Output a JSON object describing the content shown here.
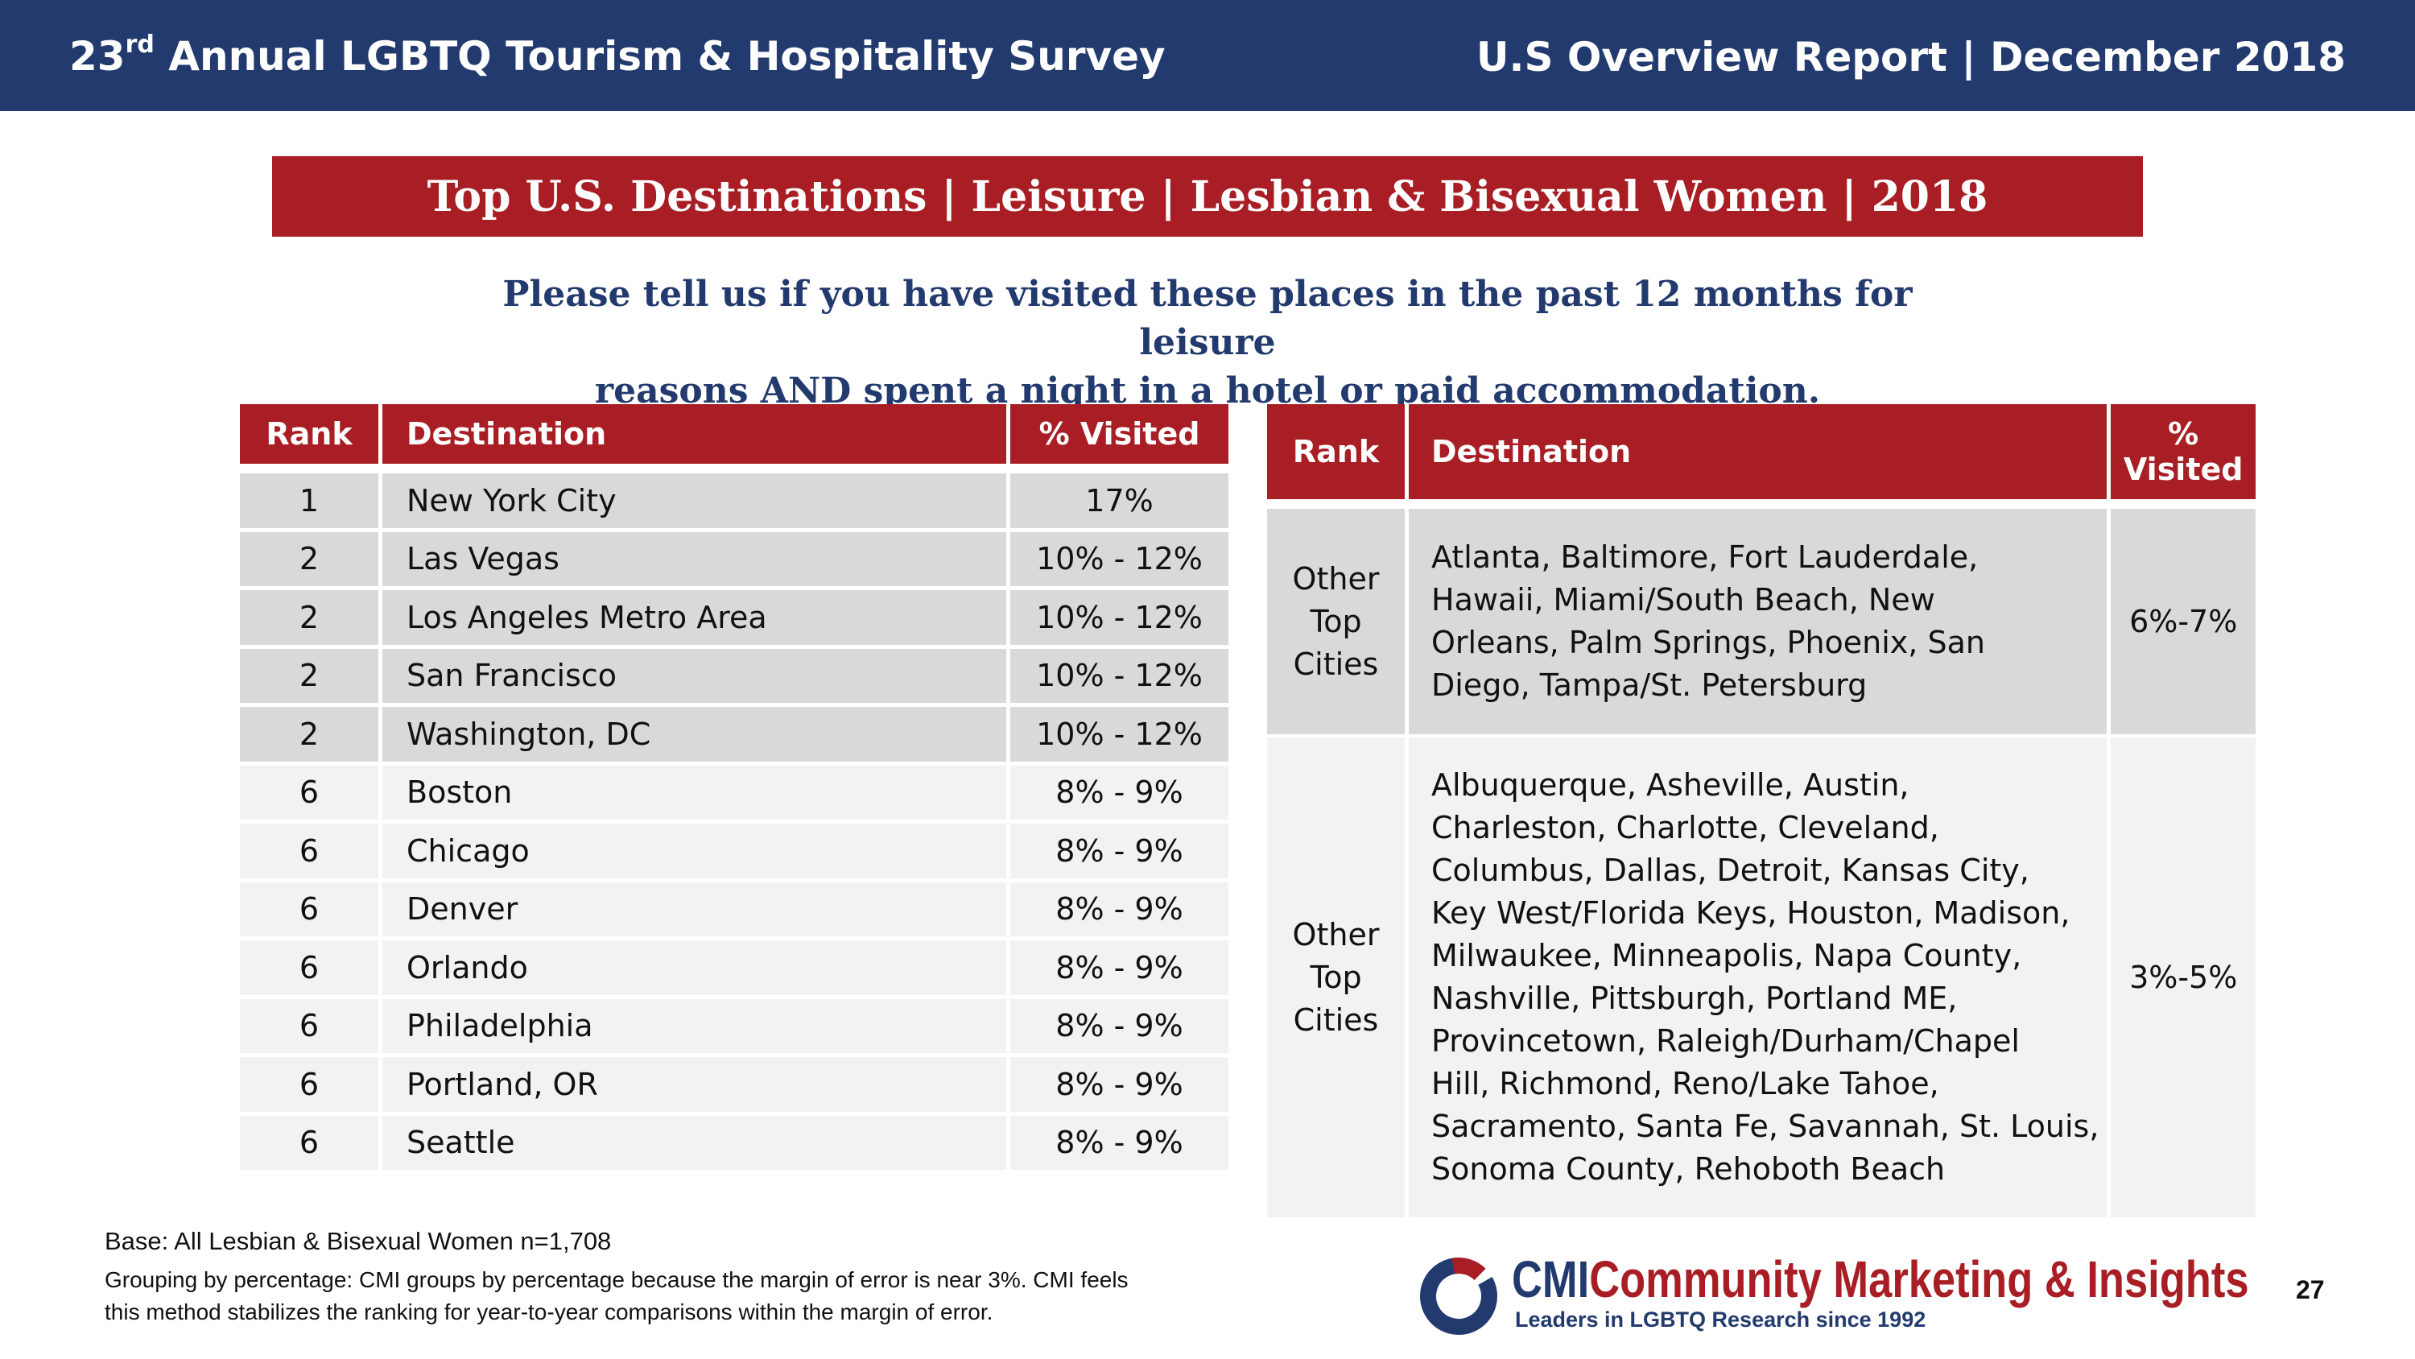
{
  "header": {
    "survey_prefix": "23",
    "survey_sup": "rd",
    "survey_rest": " Annual LGBTQ Tourism & Hospitality Survey",
    "report": "U.S Overview Report | December 2018"
  },
  "title": "Top U.S. Destinations | Leisure | Lesbian & Bisexual Women | 2018",
  "question": {
    "line1": "Please tell us if you have visited these places in the past 12 months for leisure",
    "line2": "reasons AND spent a night in a hotel or paid accommodation."
  },
  "left_table": {
    "headers": [
      "Rank",
      "Destination",
      "% Visited"
    ],
    "rows": [
      {
        "rank": "1",
        "destination": "New York City",
        "pct": "17%"
      },
      {
        "rank": "2",
        "destination": "Las Vegas",
        "pct": "10% - 12%"
      },
      {
        "rank": "2",
        "destination": "Los Angeles Metro Area",
        "pct": "10% - 12%"
      },
      {
        "rank": "2",
        "destination": "San Francisco",
        "pct": "10% - 12%"
      },
      {
        "rank": "2",
        "destination": "Washington, DC",
        "pct": "10% - 12%"
      },
      {
        "rank": "6",
        "destination": "Boston",
        "pct": "8% - 9%"
      },
      {
        "rank": "6",
        "destination": "Chicago",
        "pct": "8% - 9%"
      },
      {
        "rank": "6",
        "destination": "Denver",
        "pct": "8% - 9%"
      },
      {
        "rank": "6",
        "destination": "Orlando",
        "pct": "8% - 9%"
      },
      {
        "rank": "6",
        "destination": "Philadelphia",
        "pct": "8% - 9%"
      },
      {
        "rank": "6",
        "destination": "Portland, OR",
        "pct": "8% - 9%"
      },
      {
        "rank": "6",
        "destination": "Seattle",
        "pct": "8% - 9%"
      }
    ]
  },
  "right_table": {
    "headers": [
      "Rank",
      "Destination",
      "% Visited"
    ],
    "rows": [
      {
        "rank_lines": [
          "Other",
          "Top",
          "Cities"
        ],
        "destination_lines": [
          "Atlanta, Baltimore, Fort Lauderdale,",
          "Hawaii, Miami/South Beach, New",
          "Orleans, Palm Springs, Phoenix, San",
          "Diego, Tampa/St. Petersburg"
        ],
        "pct": "6%-7%"
      },
      {
        "rank_lines": [
          "Other",
          "Top",
          "Cities"
        ],
        "destination_lines": [
          "Albuquerque, Asheville, Austin,",
          "Charleston, Charlotte, Cleveland,",
          "Columbus, Dallas, Detroit, Kansas City,",
          "Key West/Florida Keys, Houston, Madison,",
          "Milwaukee, Minneapolis, Napa County,",
          "Nashville, Pittsburgh, Portland ME,",
          "Provincetown, Raleigh/Durham/Chapel",
          "Hill, Richmond, Reno/Lake Tahoe,",
          "Sacramento, Santa Fe, Savannah, St. Louis,",
          "Sonoma County, Rehoboth Beach"
        ],
        "pct": "3%-5%"
      }
    ]
  },
  "footnotes": {
    "base": "Base: All Lesbian & Bisexual Women n=1,708",
    "grouping_line1": "Grouping by percentage: CMI groups by percentage because the margin of error is near 3%. CMI feels",
    "grouping_line2": "this method stabilizes the ranking for year-to-year comparisons within the margin of error."
  },
  "logo": {
    "cmi": "CMI",
    "name": "Community Marketing & Insights",
    "tagline": "Leaders in LGBTQ Research since 1992",
    "icon": "cmi-ring-logo-icon"
  },
  "page_number": "27",
  "colors": {
    "navy": "#223a6e",
    "red": "#a81e24",
    "row_dark": "#d9d9d9",
    "row_light": "#f2f2f2"
  }
}
